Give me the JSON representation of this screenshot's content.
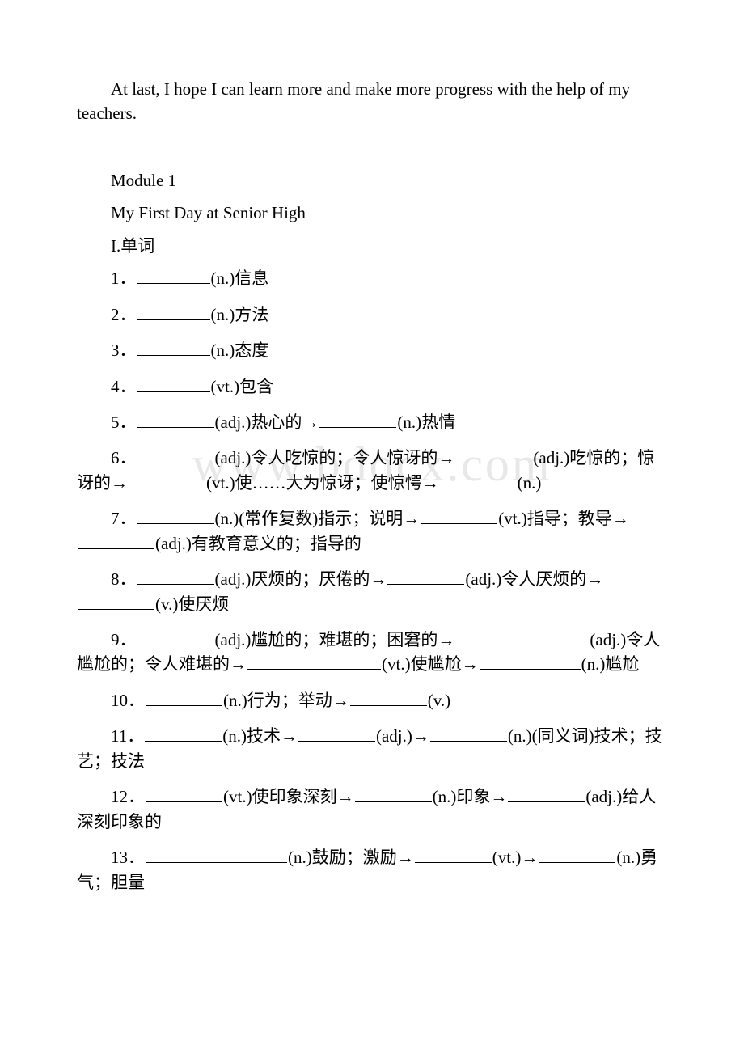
{
  "intro_paragraph": "At last, I hope I can learn more and make more progress with the help of my teachers.",
  "module_label": "Module 1",
  "module_title": "My First Day at Senior High",
  "section_label": "I.单词",
  "watermark_text": "www.bdocx.com",
  "items": {
    "i1_num": "1．",
    "i1_part": "(n.)信息",
    "i2_num": "2．",
    "i2_part": "(n.)方法",
    "i3_num": "3．",
    "i3_part": "(n.)态度",
    "i4_num": "4．",
    "i4_part": "(vt.)包含",
    "i5_num": "5．",
    "i5_a": "(adj.)热心的→",
    "i5_b": "(n.)热情",
    "i6_num": "6．",
    "i6_a": "(adj.)令人吃惊的；令人惊讶的→",
    "i6_b": "(adj.)吃惊的；惊讶的→",
    "i6_c": "(vt.)使……大为惊讶；使惊愕→",
    "i6_d": "(n.)",
    "i7_num": "7．",
    "i7_a": "(n.)(常作复数)指示；说明→",
    "i7_b": "(vt.)指导；教导→",
    "i7_c": "(adj.)有教育意义的；指导的",
    "i8_num": "8．",
    "i8_a": "(adj.)厌烦的；厌倦的→",
    "i8_b": "(adj.)令人厌烦的→",
    "i8_c": "(v.)使厌烦",
    "i9_num": "9．",
    "i9_a": "(adj.)尴尬的；难堪的；困窘的→",
    "i9_b": "(adj.)令人尴尬的；令人难堪的→",
    "i9_c": "(vt.)使尴尬→",
    "i9_d": "(n.)尴尬",
    "i10_num": "10．",
    "i10_a": "(n.)行为；举动→",
    "i10_b": "(v.)",
    "i11_num": "11．",
    "i11_a": "(n.)技术→",
    "i11_b": "(adj.)→",
    "i11_c": "(n.)(同义词)技术；技艺；技法",
    "i12_num": "12．",
    "i12_a": "(vt.)使印象深刻→",
    "i12_b": "(n.)印象→",
    "i12_c": "(adj.)给人深刻印象的",
    "i13_num": "13．",
    "i13_a": "(n.)鼓励；激励→",
    "i13_b": "(vt.)→",
    "i13_c": "(n.)勇气；胆量"
  }
}
